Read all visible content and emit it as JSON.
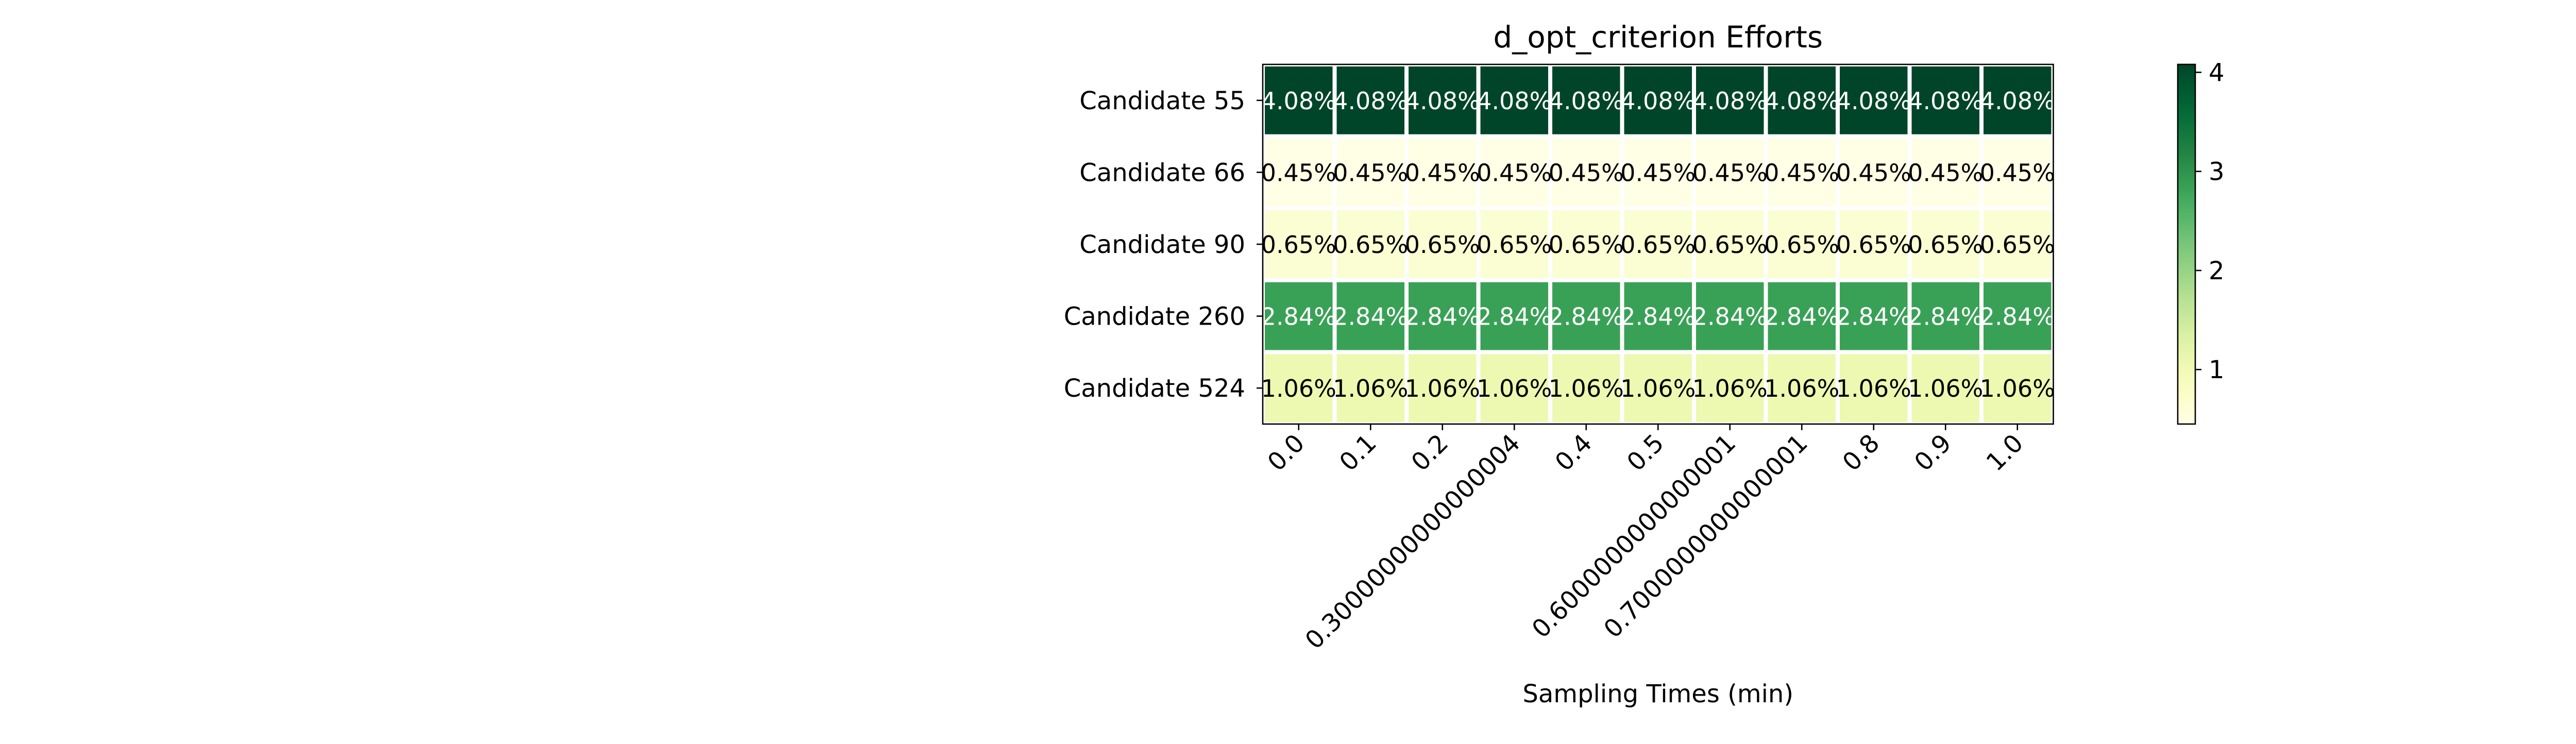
{
  "chart_data": {
    "type": "heatmap",
    "title": "d_opt_criterion Efforts",
    "xlabel": "Sampling Times (min)",
    "ylabel": "",
    "x_tick_labels": [
      "0.0",
      "0.1",
      "0.2",
      "0.30000000000000004",
      "0.4",
      "0.5",
      "0.6000000000000001",
      "0.7000000000000001",
      "0.8",
      "0.9",
      "1.0"
    ],
    "y_tick_labels": [
      "Candidate 55",
      "Candidate 66",
      "Candidate 90",
      "Candidate 260",
      "Candidate 524"
    ],
    "values": [
      [
        4.08,
        4.08,
        4.08,
        4.08,
        4.08,
        4.08,
        4.08,
        4.08,
        4.08,
        4.08,
        4.08
      ],
      [
        0.45,
        0.45,
        0.45,
        0.45,
        0.45,
        0.45,
        0.45,
        0.45,
        0.45,
        0.45,
        0.45
      ],
      [
        0.65,
        0.65,
        0.65,
        0.65,
        0.65,
        0.65,
        0.65,
        0.65,
        0.65,
        0.65,
        0.65
      ],
      [
        2.84,
        2.84,
        2.84,
        2.84,
        2.84,
        2.84,
        2.84,
        2.84,
        2.84,
        2.84,
        2.84
      ],
      [
        1.06,
        1.06,
        1.06,
        1.06,
        1.06,
        1.06,
        1.06,
        1.06,
        1.06,
        1.06,
        1.06
      ]
    ],
    "cell_labels": [
      [
        "4.08%",
        "4.08%",
        "4.08%",
        "4.08%",
        "4.08%",
        "4.08%",
        "4.08%",
        "4.08%",
        "4.08%",
        "4.08%",
        "4.08%"
      ],
      [
        "0.45%",
        "0.45%",
        "0.45%",
        "0.45%",
        "0.45%",
        "0.45%",
        "0.45%",
        "0.45%",
        "0.45%",
        "0.45%",
        "0.45%"
      ],
      [
        "0.65%",
        "0.65%",
        "0.65%",
        "0.65%",
        "0.65%",
        "0.65%",
        "0.65%",
        "0.65%",
        "0.65%",
        "0.65%",
        "0.65%"
      ],
      [
        "2.84%",
        "2.84%",
        "2.84%",
        "2.84%",
        "2.84%",
        "2.84%",
        "2.84%",
        "2.84%",
        "2.84%",
        "2.84%",
        "2.84%"
      ],
      [
        "1.06%",
        "1.06%",
        "1.06%",
        "1.06%",
        "1.06%",
        "1.06%",
        "1.06%",
        "1.06%",
        "1.06%",
        "1.06%",
        "1.06%"
      ]
    ],
    "colormap": "YlGn",
    "colorbar": {
      "range": [
        0.45,
        4.08
      ],
      "tick_labels": [
        "1",
        "2",
        "3",
        "4"
      ]
    },
    "grid": false,
    "legend": "none"
  }
}
